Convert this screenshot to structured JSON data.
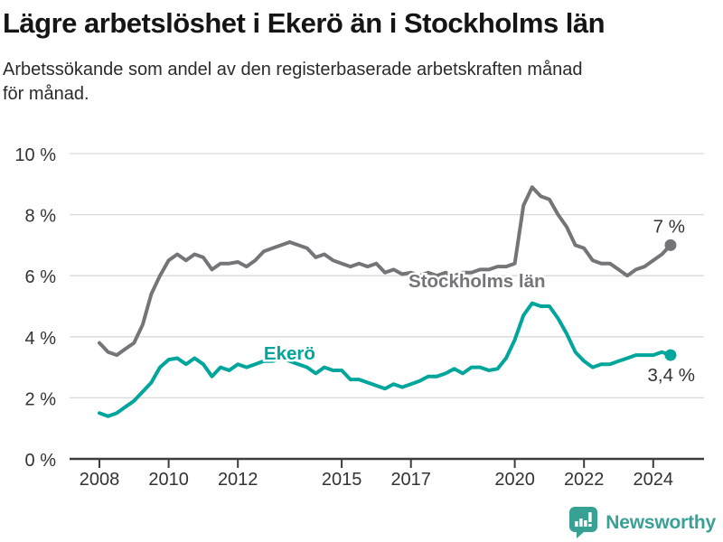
{
  "footer": {
    "brand": "Newsworthy"
  },
  "colors": {
    "ekero": "#00a59b",
    "stockholm": "#757479",
    "axis": "#3c3c3c",
    "tick_label": "#333333",
    "grid": "#d9d9d9",
    "annotation": "#333333",
    "title": "#151515",
    "logo": "#38a196"
  },
  "chart_data": {
    "type": "line",
    "title": "Lägre arbetslöshet i Ekerö än i Stockholms län",
    "subtitle": "Arbetssökande som andel av den registerbaserade arbetskraften månad för månad.",
    "xlabel": "",
    "ylabel": "",
    "grid": true,
    "legend_position": "inline-labels",
    "x_start": 2008,
    "x_step": 0.25,
    "x_end": 2024.5,
    "xlim": [
      2007.15,
      2025.5
    ],
    "ylim": [
      0,
      10
    ],
    "y_ticks": [
      0,
      2,
      4,
      6,
      8,
      10
    ],
    "y_tick_suffix": " %",
    "x_ticks": [
      2008,
      2010,
      2012,
      2015,
      2017,
      2020,
      2022,
      2024
    ],
    "series": [
      {
        "key": "stockholm",
        "name": "Stockholms län",
        "color_key": "stockholm",
        "end_label": "7 %",
        "label_at": [
          2016.93,
          5.62
        ],
        "values": [
          3.8,
          3.5,
          3.4,
          3.6,
          3.8,
          4.4,
          5.4,
          6.0,
          6.5,
          6.7,
          6.5,
          6.7,
          6.6,
          6.2,
          6.4,
          6.4,
          6.45,
          6.3,
          6.5,
          6.8,
          6.9,
          7.0,
          7.1,
          7.0,
          6.9,
          6.6,
          6.7,
          6.5,
          6.4,
          6.3,
          6.4,
          6.3,
          6.4,
          6.1,
          6.2,
          6.05,
          6.1,
          6.0,
          6.1,
          6.0,
          6.1,
          6.0,
          6.1,
          6.1,
          6.2,
          6.2,
          6.3,
          6.3,
          6.4,
          8.3,
          8.9,
          8.6,
          8.5,
          8.0,
          7.6,
          7.0,
          6.9,
          6.5,
          6.4,
          6.4,
          6.2,
          6.0,
          6.2,
          6.3,
          6.5,
          6.7,
          7.0
        ]
      },
      {
        "key": "ekero",
        "name": "Ekerö",
        "color_key": "ekero",
        "end_label": "3,4 %",
        "label_at": [
          2012.75,
          3.25
        ],
        "values": [
          1.5,
          1.4,
          1.5,
          1.7,
          1.9,
          2.2,
          2.5,
          3.0,
          3.25,
          3.3,
          3.1,
          3.3,
          3.1,
          2.7,
          3.0,
          2.9,
          3.1,
          3.0,
          3.1,
          3.2,
          3.2,
          3.3,
          3.2,
          3.1,
          3.0,
          2.8,
          3.0,
          2.9,
          2.9,
          2.6,
          2.6,
          2.5,
          2.4,
          2.3,
          2.45,
          2.35,
          2.45,
          2.55,
          2.7,
          2.7,
          2.8,
          2.95,
          2.8,
          3.0,
          3.0,
          2.9,
          2.95,
          3.3,
          3.9,
          4.7,
          5.1,
          5.0,
          5.0,
          4.6,
          4.1,
          3.5,
          3.2,
          3.0,
          3.1,
          3.1,
          3.2,
          3.3,
          3.4,
          3.4,
          3.4,
          3.5,
          3.4
        ]
      }
    ]
  }
}
